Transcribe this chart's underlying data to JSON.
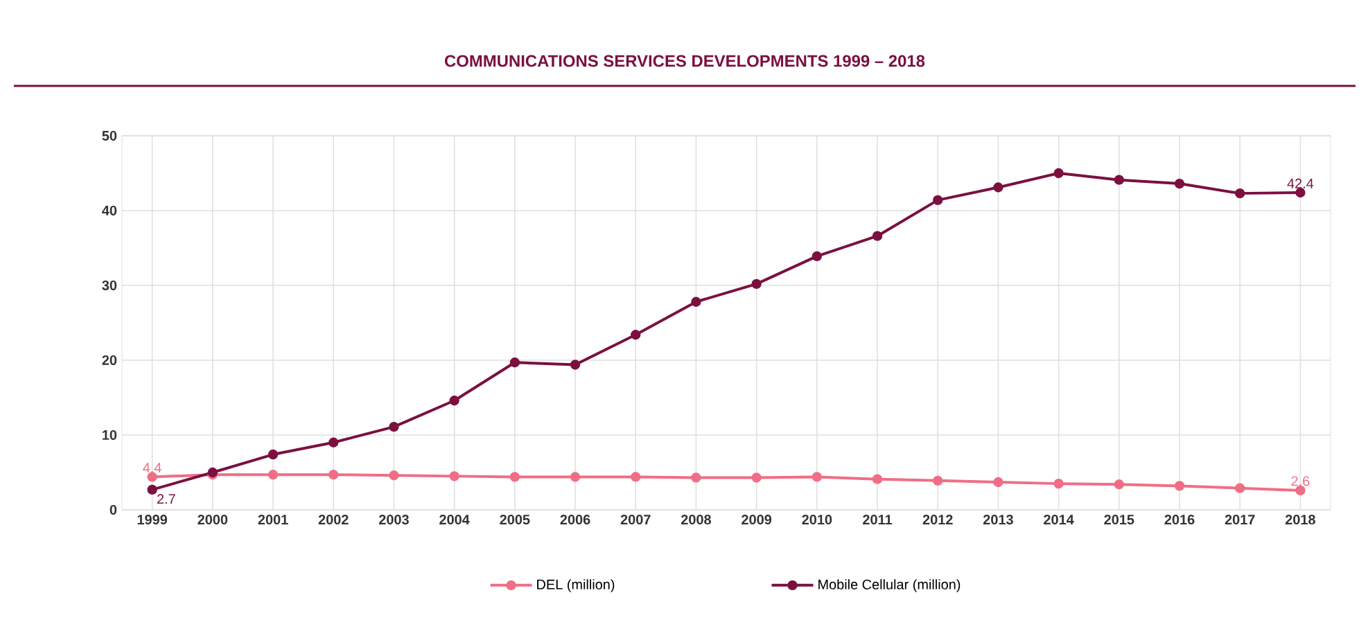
{
  "chart_data": {
    "type": "line",
    "title": "COMMUNICATIONS SERVICES DEVELOPMENTS 1999 – 2018",
    "categories": [
      "1999",
      "2000",
      "2001",
      "2002",
      "2003",
      "2004",
      "2005",
      "2006",
      "2007",
      "2008",
      "2009",
      "2010",
      "2011",
      "2012",
      "2013",
      "2014",
      "2015",
      "2016",
      "2017",
      "2018"
    ],
    "series": [
      {
        "name": "DEL (million)",
        "color": "#f06e85",
        "values": [
          4.4,
          4.7,
          4.7,
          4.7,
          4.6,
          4.5,
          4.4,
          4.4,
          4.4,
          4.3,
          4.3,
          4.4,
          4.1,
          3.9,
          3.7,
          3.5,
          3.4,
          3.2,
          2.9,
          2.6
        ],
        "value_labels": [
          "4.4",
          null,
          null,
          null,
          null,
          null,
          null,
          null,
          null,
          null,
          null,
          null,
          null,
          null,
          null,
          null,
          null,
          null,
          null,
          "2.6"
        ]
      },
      {
        "name": "Mobile Cellular (million)",
        "color": "#7b1040",
        "values": [
          2.7,
          5.0,
          7.4,
          9.0,
          11.1,
          14.6,
          19.7,
          19.4,
          23.4,
          27.8,
          30.2,
          33.9,
          36.6,
          41.4,
          43.1,
          45.0,
          44.1,
          43.6,
          42.3,
          42.4
        ],
        "value_labels": [
          "2.7",
          null,
          null,
          null,
          null,
          null,
          null,
          null,
          null,
          null,
          null,
          null,
          null,
          null,
          null,
          null,
          null,
          null,
          null,
          "42.4"
        ]
      }
    ],
    "ylim": [
      0,
      50
    ],
    "yticks": [
      0,
      10,
      20,
      30,
      40,
      50
    ],
    "grid": true,
    "legend": "bottom",
    "marker": "circle",
    "line_style": "solid"
  }
}
